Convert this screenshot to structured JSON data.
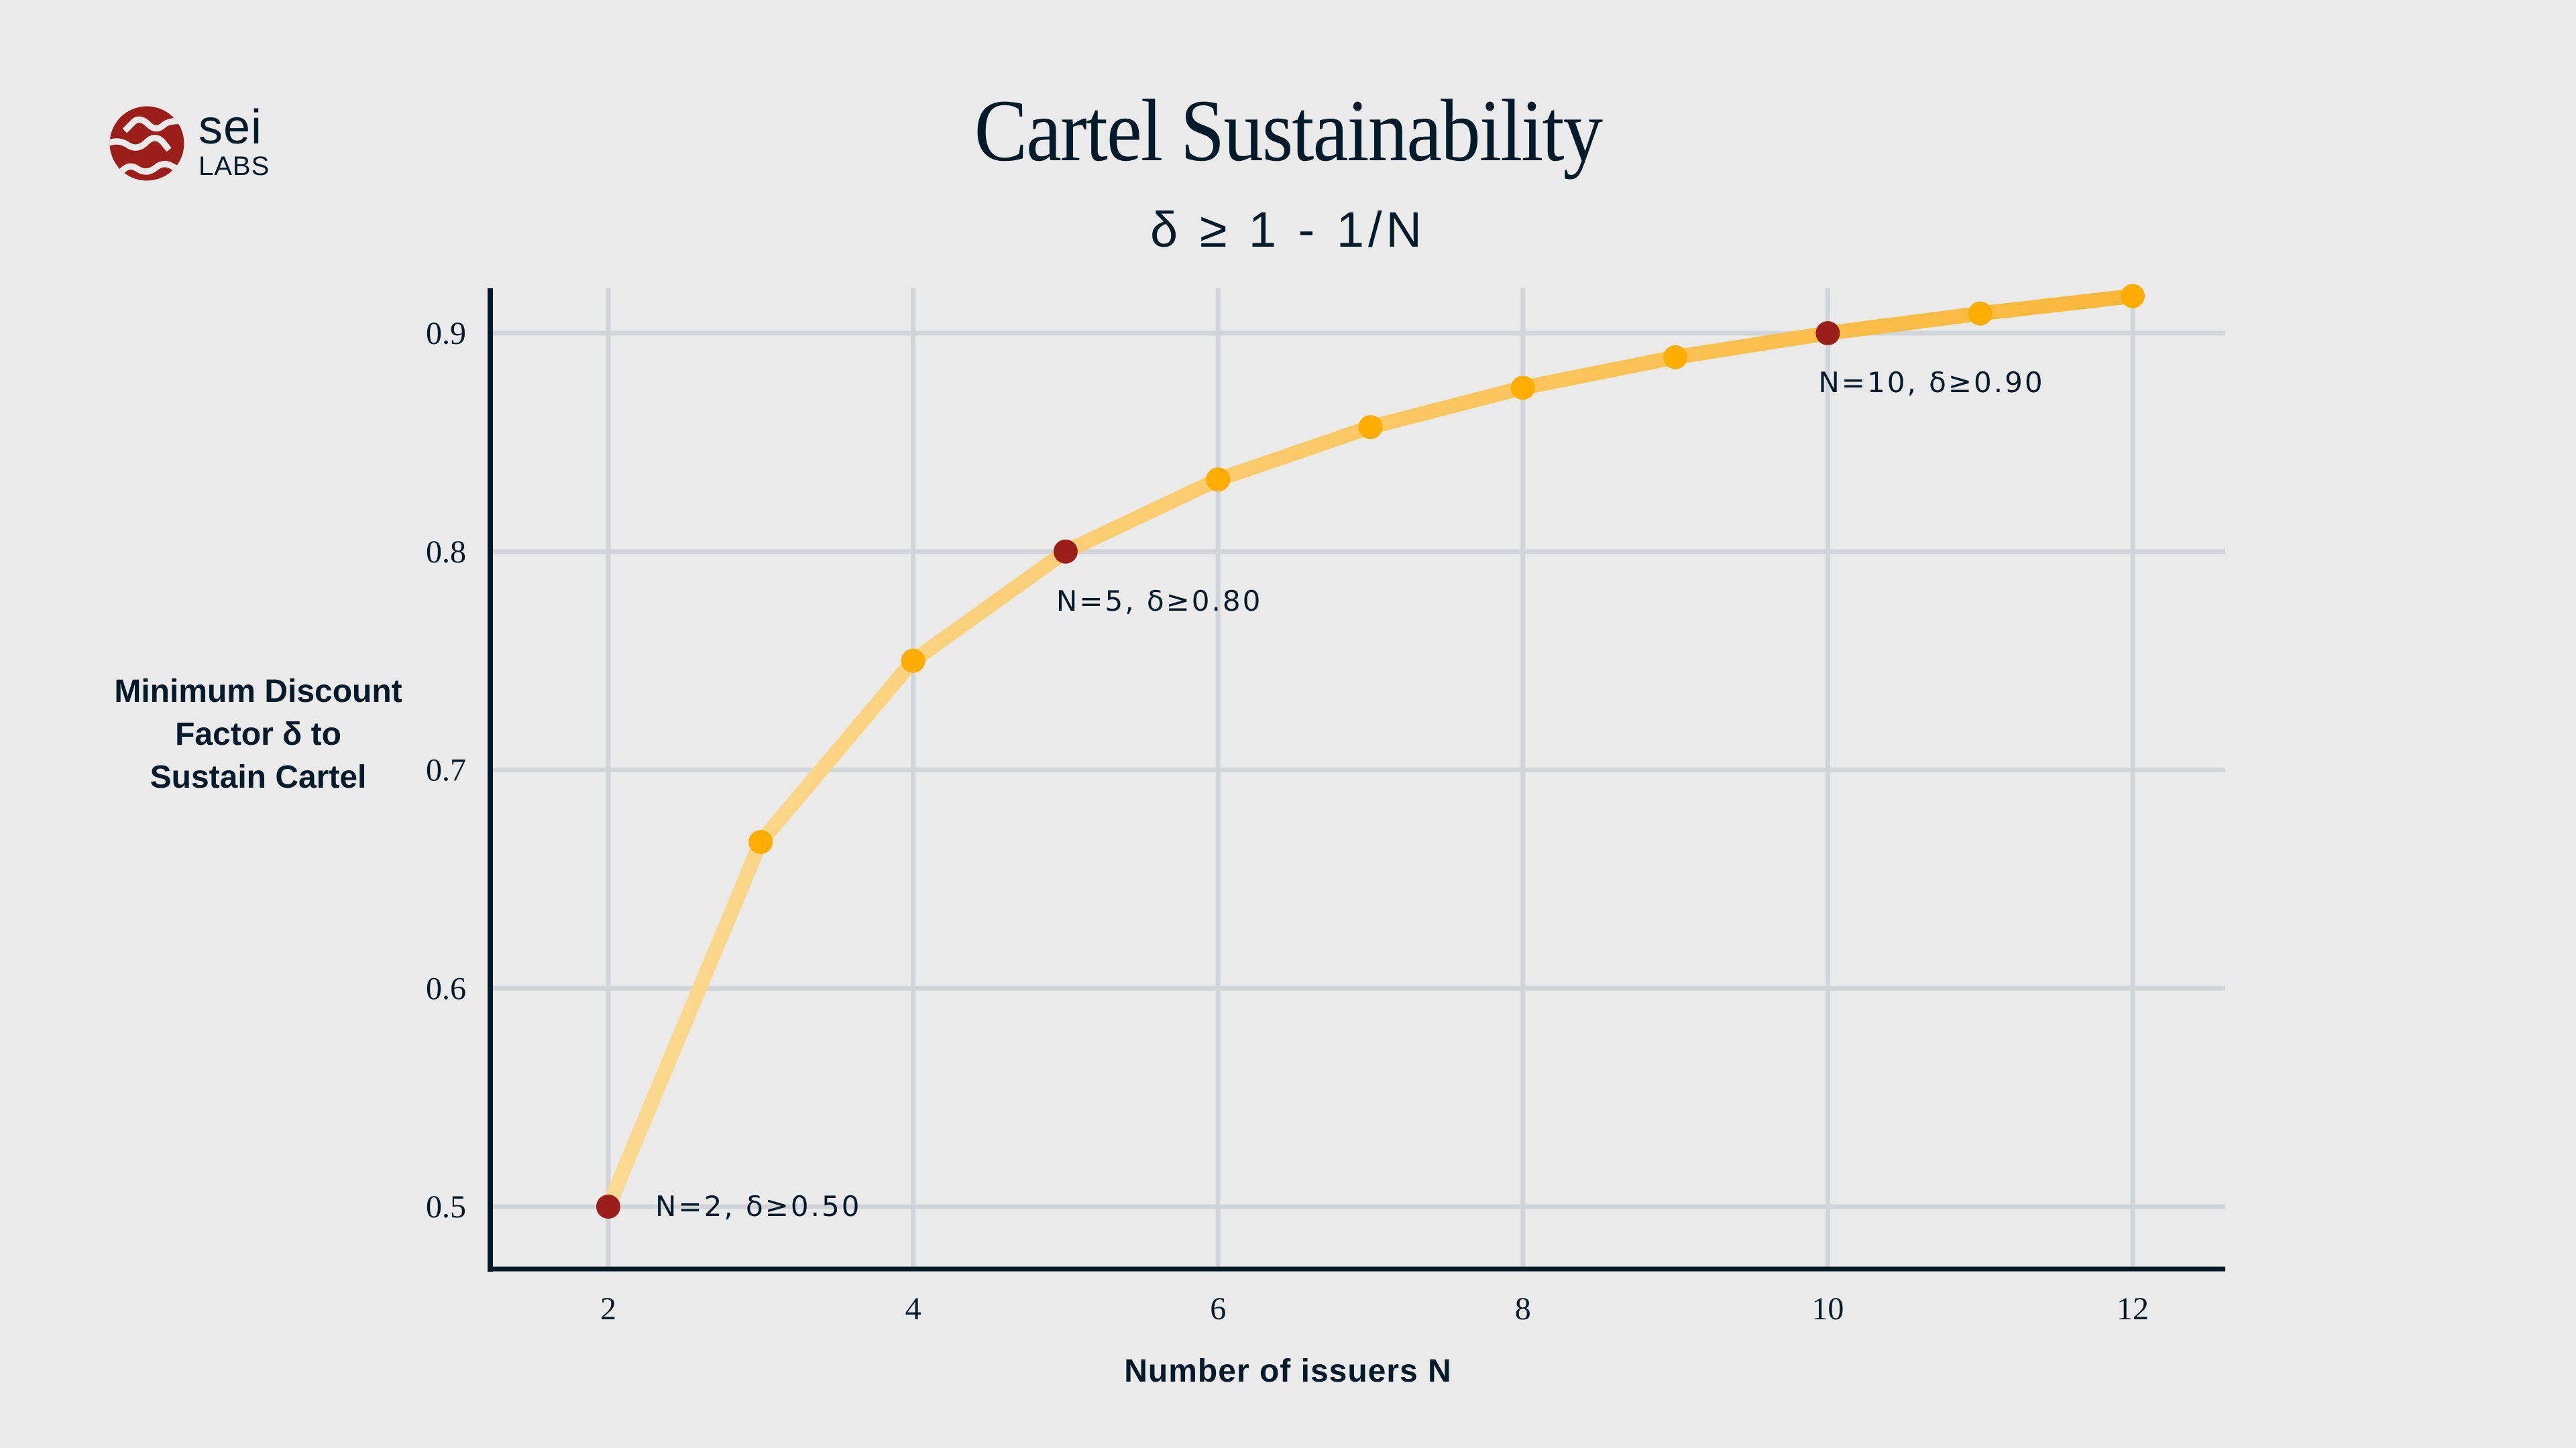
{
  "brand": {
    "name": "sei",
    "sub": "LABS",
    "logo_icon": "sei-wave-logo-icon",
    "color": "#9b1e1a"
  },
  "colors": {
    "background": "#eaeaea",
    "text": "#021b2a",
    "grid": "#d3d4d7",
    "axis": "#021b2a",
    "line_start": "#fcd990",
    "line_end": "#fbb73a",
    "point": "#ffad00",
    "highlight_point": "#9b1e1a"
  },
  "chart_data": {
    "type": "line",
    "title": "Cartel Sustainability",
    "subtitle": "δ ≥ 1 - 1/N",
    "xlabel": "Number of issuers N",
    "ylabel": "Minimum Discount Factor δ to Sustain Cartel",
    "ylabel_lines": [
      "Minimum Discount",
      "Factor δ to",
      "Sustain Cartel"
    ],
    "x": [
      2,
      3,
      4,
      5,
      6,
      7,
      8,
      9,
      10,
      11,
      12
    ],
    "series": [
      {
        "name": "δ = 1 - 1/N",
        "values": [
          0.5,
          0.667,
          0.75,
          0.8,
          0.833,
          0.857,
          0.875,
          0.889,
          0.9,
          0.909,
          0.917
        ]
      }
    ],
    "highlighted": [
      {
        "x": 2,
        "y": 0.5,
        "label": "N=2, δ≥0.50",
        "position": "right"
      },
      {
        "x": 5,
        "y": 0.8,
        "label": "N=5, δ≥0.80",
        "position": "below"
      },
      {
        "x": 10,
        "y": 0.9,
        "label": "N=10, δ≥0.90",
        "position": "below"
      }
    ],
    "xticks": [
      2,
      4,
      6,
      8,
      10,
      12
    ],
    "xtick_labels": [
      "2",
      "4",
      "6",
      "8",
      "10",
      "12"
    ],
    "yticks": [
      0.5,
      0.6,
      0.7,
      0.8,
      0.9
    ],
    "ytick_labels": [
      "0.5",
      "0.6",
      "0.7",
      "0.8",
      "0.9"
    ],
    "xlim": [
      1.62,
      12.3
    ],
    "ylim": [
      0.472,
      0.92
    ],
    "grid": true,
    "legend": "none"
  }
}
